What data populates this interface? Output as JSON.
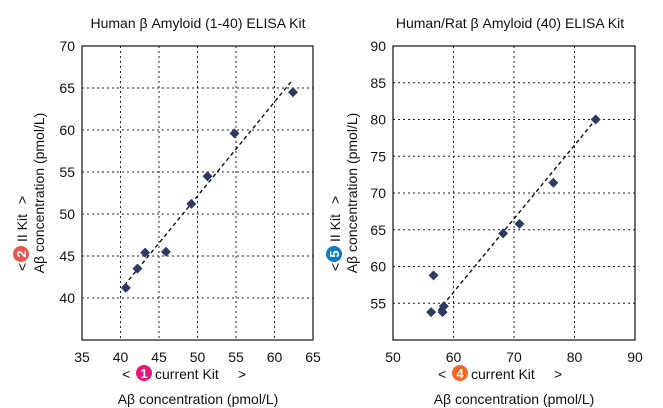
{
  "chart_data": [
    {
      "type": "scatter",
      "title": "Human β Amyloid (1-40) ELISA Kit",
      "xlabel_line1": {
        "prefix": "< ",
        "badge": "1",
        "text": "current Kit",
        "suffix": ">"
      },
      "xlabel_line2": "Aβ concentration (pmol/L)",
      "ylabel_line1": {
        "prefix": "<",
        "badge": "2",
        "text": "II Kit",
        "suffix": ">"
      },
      "ylabel_line2": "Aβ concentration (pmol/L)",
      "badge_color": "#e8157a",
      "xlim": [
        35,
        65
      ],
      "ylim": [
        35,
        70
      ],
      "xticks": [
        "35",
        "40",
        "45",
        "50",
        "55",
        "60",
        "65"
      ],
      "yticks": [
        "40",
        "45",
        "50",
        "55",
        "60",
        "65",
        "70"
      ],
      "grid": true,
      "trendline": true,
      "trend_x": [
        40.5,
        62.2
      ],
      "trend_y": [
        41.5,
        65.8
      ],
      "marker_color": "#2f3a63",
      "points": [
        {
          "x": 40.7,
          "y": 41.2
        },
        {
          "x": 42.2,
          "y": 43.5
        },
        {
          "x": 43.2,
          "y": 45.4
        },
        {
          "x": 45.9,
          "y": 45.5
        },
        {
          "x": 49.2,
          "y": 51.2
        },
        {
          "x": 51.3,
          "y": 54.5
        },
        {
          "x": 54.8,
          "y": 59.6
        },
        {
          "x": 62.4,
          "y": 64.5
        }
      ]
    },
    {
      "type": "scatter",
      "title": "Human/Rat β Amyloid (40) ELISA Kit",
      "xlabel_line1": {
        "prefix": "< ",
        "badge": "4",
        "text": "current Kit",
        "suffix": ">"
      },
      "xlabel_line2": "Aβ concentration (pmol/L)",
      "ylabel_line1": {
        "prefix": "<",
        "badge": "5",
        "text": "II Kit",
        "suffix": ">"
      },
      "ylabel_line2": "Aβ concentration (pmol/L)",
      "badge_color": "#f26522",
      "ybadge_color": "#0e78c5",
      "xlim": [
        50,
        90
      ],
      "ylim": [
        50,
        90
      ],
      "xticks": [
        "50",
        "60",
        "70",
        "80",
        "90"
      ],
      "yticks": [
        "55",
        "60",
        "65",
        "70",
        "75",
        "80",
        "85",
        "90"
      ],
      "grid": true,
      "trendline": true,
      "trend_x": [
        57.5,
        83.5
      ],
      "trend_y": [
        54.0,
        80.0
      ],
      "marker_color": "#2f3a63",
      "points": [
        {
          "x": 56.3,
          "y": 53.8
        },
        {
          "x": 56.7,
          "y": 58.8
        },
        {
          "x": 58.2,
          "y": 53.8
        },
        {
          "x": 58.4,
          "y": 54.6
        },
        {
          "x": 68.2,
          "y": 64.5
        },
        {
          "x": 70.9,
          "y": 65.8
        },
        {
          "x": 76.5,
          "y": 71.4
        },
        {
          "x": 83.5,
          "y": 80.0
        }
      ]
    }
  ]
}
